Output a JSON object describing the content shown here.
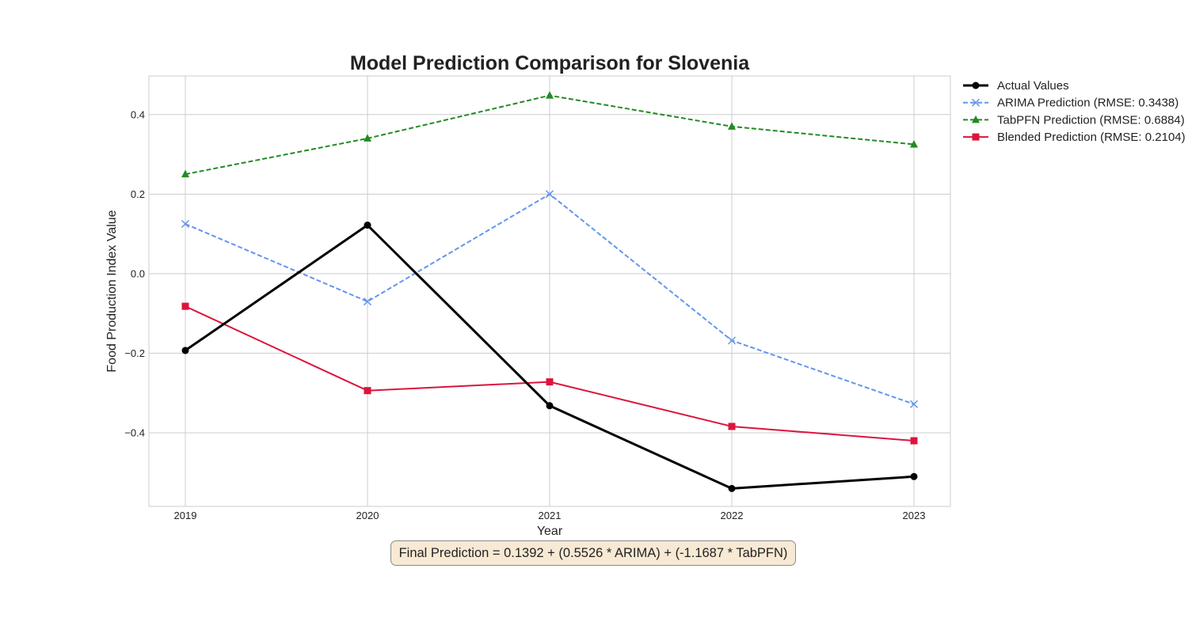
{
  "chart_data": {
    "type": "line",
    "title": "Model Prediction Comparison for Slovenia",
    "xlabel": "Year",
    "ylabel": "Food Production Index Value",
    "x": [
      2019,
      2020,
      2021,
      2022,
      2023
    ],
    "x_tick_labels": [
      "2019",
      "2020",
      "2021",
      "2022",
      "2023"
    ],
    "y_ticks": [
      0.4,
      0.2,
      0.0,
      -0.2,
      -0.4
    ],
    "y_tick_labels": [
      "0.4",
      "0.2",
      "0.0",
      "−0.2",
      "−0.4"
    ],
    "xlim": [
      2018.8,
      2023.2
    ],
    "ylim": [
      -0.585,
      0.497
    ],
    "grid": true,
    "legend_position": "outside-top-right",
    "series": [
      {
        "name": "Actual Values",
        "values": [
          -0.193,
          0.122,
          -0.332,
          -0.54,
          -0.51
        ],
        "color": "#000000",
        "line_style": "solid",
        "marker": "circle"
      },
      {
        "name": "ARIMA Prediction (RMSE: 0.3438)",
        "values": [
          0.125,
          -0.07,
          0.2,
          -0.168,
          -0.328
        ],
        "color": "#6495ed",
        "line_style": "dashed",
        "marker": "x"
      },
      {
        "name": "TabPFN Prediction (RMSE: 0.6884)",
        "values": [
          0.25,
          0.34,
          0.448,
          0.37,
          0.325
        ],
        "color": "#228b22",
        "line_style": "dashed",
        "marker": "triangle"
      },
      {
        "name": "Blended Prediction (RMSE: 0.2104)",
        "values": [
          -0.082,
          -0.294,
          -0.272,
          -0.384,
          -0.42
        ],
        "color": "#dc143c",
        "line_style": "solid",
        "marker": "square"
      }
    ],
    "annotation": "Final Prediction = 0.1392 + (0.5526 * ARIMA) + (-1.1687 * TabPFN)"
  }
}
